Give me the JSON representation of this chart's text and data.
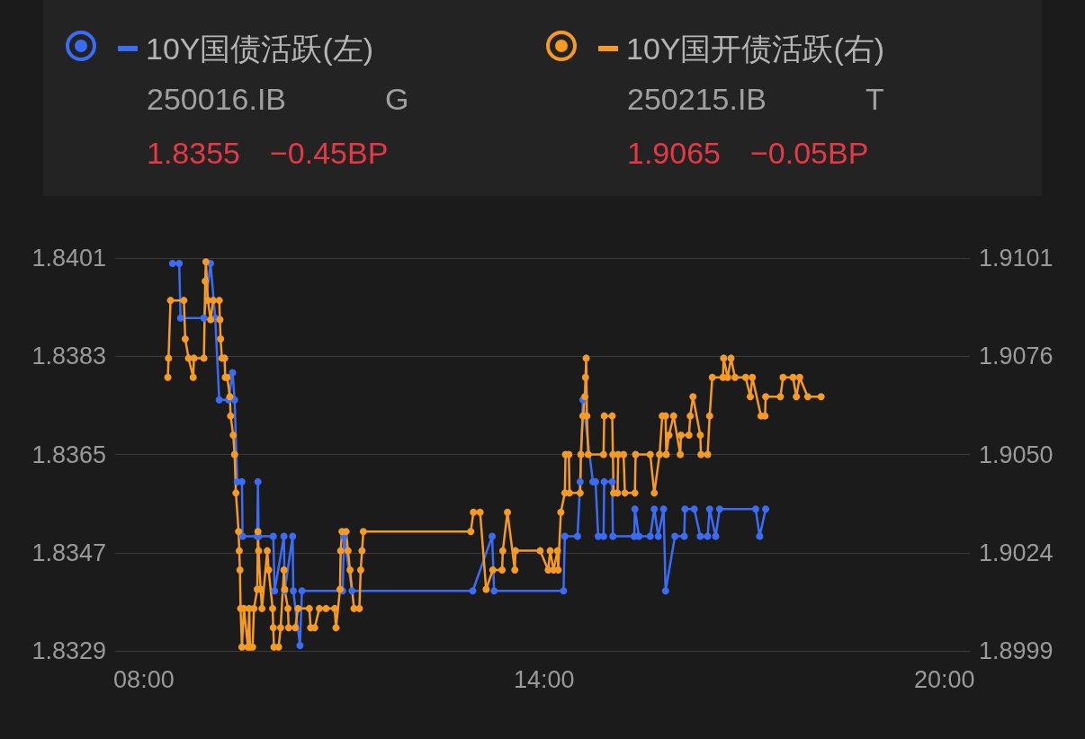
{
  "chart_data": {
    "type": "line",
    "series": [
      {
        "name": "10Y国债活跃(左)",
        "color": "#3b6cf5",
        "axis": "y",
        "x": [
          8.43,
          8.53,
          8.55,
          8.9,
          9.0,
          9.07,
          9.13,
          9.27,
          9.33,
          9.36,
          9.4,
          9.47,
          9.48,
          9.7,
          9.71,
          9.72,
          9.94,
          9.96,
          10.1,
          10.11,
          10.23,
          10.24,
          10.34,
          10.37,
          10.98,
          11.0,
          11.12,
          12.93,
          13.22,
          13.25,
          14.29,
          14.31,
          14.5,
          14.54,
          14.58,
          14.73,
          14.77,
          14.81,
          14.89,
          14.9,
          15.02,
          15.03,
          15.35,
          15.36,
          15.42,
          15.59,
          15.65,
          15.71,
          15.79,
          15.82,
          15.96,
          16.1,
          16.11,
          16.25,
          16.34,
          16.45,
          16.48,
          16.57,
          16.63,
          17.17,
          17.23,
          17.32
        ],
        "values": [
          1.84,
          1.84,
          1.839,
          1.839,
          1.84,
          1.839,
          1.8375,
          1.8375,
          1.838,
          1.8375,
          1.836,
          1.836,
          1.835,
          1.835,
          1.836,
          1.835,
          1.835,
          1.834,
          1.835,
          1.834,
          1.835,
          1.834,
          1.833,
          1.834,
          1.834,
          1.835,
          1.834,
          1.834,
          1.835,
          1.834,
          1.834,
          1.835,
          1.835,
          1.836,
          1.8375,
          1.836,
          1.836,
          1.835,
          1.835,
          1.836,
          1.836,
          1.835,
          1.835,
          1.8355,
          1.835,
          1.835,
          1.8355,
          1.835,
          1.8355,
          1.834,
          1.835,
          1.835,
          1.8355,
          1.8355,
          1.835,
          1.835,
          1.8355,
          1.835,
          1.8355,
          1.8355,
          1.835,
          1.8355
        ]
      },
      {
        "name": "10Y国开债活跃(右)",
        "color": "#f59a23",
        "axis": "y2",
        "x": [
          8.36,
          8.37,
          8.4,
          8.6,
          8.62,
          8.67,
          8.74,
          8.75,
          8.9,
          8.92,
          8.93,
          8.96,
          9.0,
          9.04,
          9.13,
          9.14,
          9.15,
          9.17,
          9.21,
          9.22,
          9.25,
          9.29,
          9.3,
          9.34,
          9.36,
          9.38,
          9.42,
          9.43,
          9.44,
          9.45,
          9.47,
          9.5,
          9.56,
          9.58,
          9.59,
          9.63,
          9.65,
          9.7,
          9.71,
          9.72,
          9.75,
          9.77,
          9.85,
          9.87,
          9.93,
          9.94,
          9.95,
          10.02,
          10.05,
          10.1,
          10.11,
          10.16,
          10.17,
          10.27,
          10.31,
          10.48,
          10.5,
          10.56,
          10.63,
          10.73,
          10.86,
          10.88,
          10.94,
          10.95,
          10.97,
          11.03,
          11.06,
          11.09,
          11.15,
          11.23,
          11.25,
          11.27,
          11.29,
          12.9,
          12.94,
          13.04,
          13.13,
          13.23,
          13.37,
          13.38,
          13.45,
          13.56,
          13.57,
          13.94,
          14.06,
          14.09,
          14.14,
          14.2,
          14.21,
          14.25,
          14.31,
          14.32,
          14.37,
          14.38,
          14.54,
          14.55,
          14.58,
          14.61,
          14.62,
          14.63,
          14.64,
          14.66,
          14.89,
          14.9,
          15.02,
          15.03,
          15.04,
          15.1,
          15.11,
          15.19,
          15.21,
          15.36,
          15.37,
          15.59,
          15.65,
          15.73,
          15.77,
          15.82,
          15.83,
          15.87,
          15.94,
          16.04,
          16.05,
          16.17,
          16.19,
          16.23,
          16.34,
          16.35,
          16.45,
          16.48,
          16.52,
          16.68,
          16.69,
          16.75,
          16.8,
          16.86,
          17.02,
          17.09,
          17.12,
          17.25,
          17.31,
          17.32,
          17.54,
          17.58,
          17.73,
          17.78,
          17.83,
          17.95,
          18.15
        ],
        "values": [
          1.907,
          1.9075,
          1.909,
          1.909,
          1.908,
          1.9075,
          1.907,
          1.9075,
          1.9075,
          1.9095,
          1.91,
          1.909,
          1.9085,
          1.909,
          1.909,
          1.9085,
          1.908,
          1.9075,
          1.9075,
          1.907,
          1.907,
          1.9065,
          1.906,
          1.9055,
          1.905,
          1.904,
          1.903,
          1.9025,
          1.902,
          1.901,
          1.9,
          1.901,
          1.9,
          1.901,
          1.9,
          1.9,
          1.901,
          1.9015,
          1.903,
          1.9025,
          1.9015,
          1.901,
          1.9025,
          1.902,
          1.901,
          1.9005,
          1.9,
          1.9,
          1.9005,
          1.902,
          1.9015,
          1.901,
          1.9005,
          1.9005,
          1.901,
          1.901,
          1.9005,
          1.9005,
          1.901,
          1.901,
          1.901,
          1.9005,
          1.9015,
          1.9025,
          1.903,
          1.903,
          1.9025,
          1.902,
          1.901,
          1.901,
          1.902,
          1.9025,
          1.903,
          1.903,
          1.9035,
          1.9035,
          1.9015,
          1.902,
          1.902,
          1.9025,
          1.9035,
          1.902,
          1.9025,
          1.9025,
          1.902,
          1.9025,
          1.902,
          1.9025,
          1.902,
          1.9035,
          1.904,
          1.905,
          1.905,
          1.904,
          1.904,
          1.905,
          1.906,
          1.9065,
          1.907,
          1.9075,
          1.906,
          1.905,
          1.905,
          1.906,
          1.906,
          1.905,
          1.904,
          1.904,
          1.905,
          1.905,
          1.904,
          1.904,
          1.905,
          1.905,
          1.904,
          1.905,
          1.906,
          1.906,
          1.905,
          1.9055,
          1.906,
          1.905,
          1.9055,
          1.9055,
          1.906,
          1.9065,
          1.9055,
          1.905,
          1.905,
          1.906,
          1.907,
          1.907,
          1.9075,
          1.907,
          1.9075,
          1.907,
          1.907,
          1.9065,
          1.907,
          1.906,
          1.906,
          1.9065,
          1.9065,
          1.907,
          1.907,
          1.9065,
          1.907,
          1.9065,
          1.9065
        ]
      }
    ],
    "xlim": [
      7.57,
      20.38
    ],
    "xticks": [
      {
        "value": 8,
        "label": "08:00"
      },
      {
        "value": 14,
        "label": "14:00"
      },
      {
        "value": 20,
        "label": "20:00"
      }
    ],
    "ylim": [
      1.8329,
      1.8401
    ],
    "yticks": [
      1.8329,
      1.8347,
      1.8365,
      1.8383,
      1.8401
    ],
    "y2lim": [
      1.8999,
      1.9101
    ],
    "y2ticks": [
      {
        "value": 1.8999,
        "label": "1.8999"
      },
      {
        "value": 1.90245,
        "label": "1.9024"
      },
      {
        "value": 1.905,
        "label": "1.9050"
      },
      {
        "value": 1.90755,
        "label": "1.9076"
      },
      {
        "value": 1.9101,
        "label": "1.9101"
      }
    ],
    "annotations": [
      "250016.IB",
      "G",
      "1.8355",
      "−0.45BP",
      "250215.IB",
      "T",
      "1.9065",
      "−0.05BP"
    ],
    "grid": "y",
    "legend": "top left",
    "marker": "circle",
    "line_style": "solid"
  }
}
